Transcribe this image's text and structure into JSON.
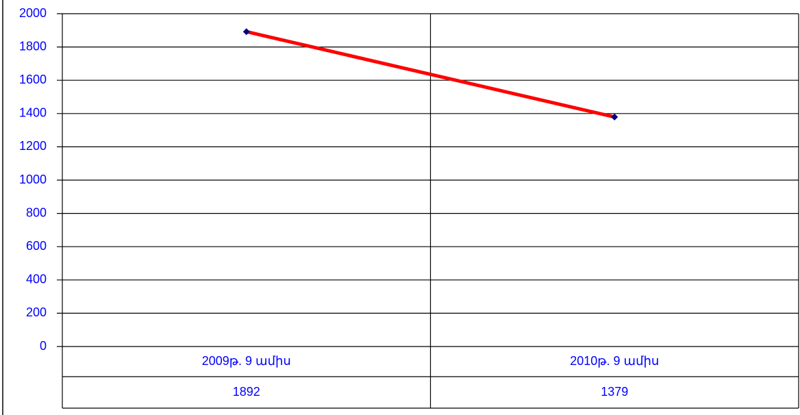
{
  "chart_data": {
    "type": "line",
    "categories": [
      "2009թ. 9 ամիս",
      "2010թ. 9 ամիս"
    ],
    "values": [
      1892,
      1379
    ],
    "color": "#ff0000",
    "marker_color": "#000080",
    "label_color": "#0000ff",
    "ylim": [
      0,
      2000
    ],
    "yticks": [
      0,
      200,
      400,
      600,
      800,
      1000,
      1200,
      1400,
      1600,
      1800,
      2000
    ],
    "grid": true,
    "data_table": true
  }
}
